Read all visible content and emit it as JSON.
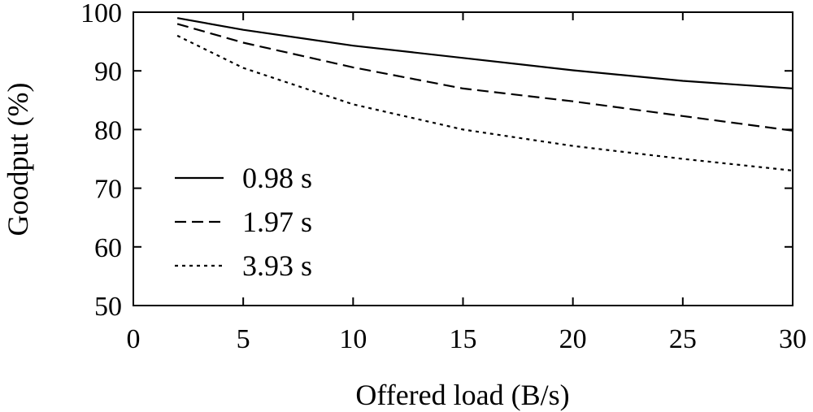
{
  "chart_data": {
    "type": "line",
    "xlabel": "Offered load (B/s)",
    "ylabel": "Goodput (%)",
    "xlim": [
      0,
      30
    ],
    "ylim": [
      50,
      100
    ],
    "xticks": [
      "0",
      "5",
      "10",
      "15",
      "20",
      "25",
      "30"
    ],
    "yticks": [
      "50",
      "60",
      "70",
      "80",
      "90",
      "100"
    ],
    "grid": false,
    "legend_position": "bottom-left",
    "x": [
      2,
      5,
      10,
      15,
      20,
      25,
      30
    ],
    "series": [
      {
        "name": "0.98 s",
        "dash": "solid",
        "values": [
          99,
          97,
          94.3,
          92.2,
          90.1,
          88.3,
          87
        ]
      },
      {
        "name": "1.97 s",
        "dash": "dashed",
        "values": [
          98,
          94.8,
          90.6,
          87,
          84.8,
          82.3,
          79.8
        ]
      },
      {
        "name": "3.93 s",
        "dash": "dotted",
        "values": [
          96,
          90.5,
          84.3,
          80,
          77.2,
          75,
          73
        ]
      }
    ]
  }
}
